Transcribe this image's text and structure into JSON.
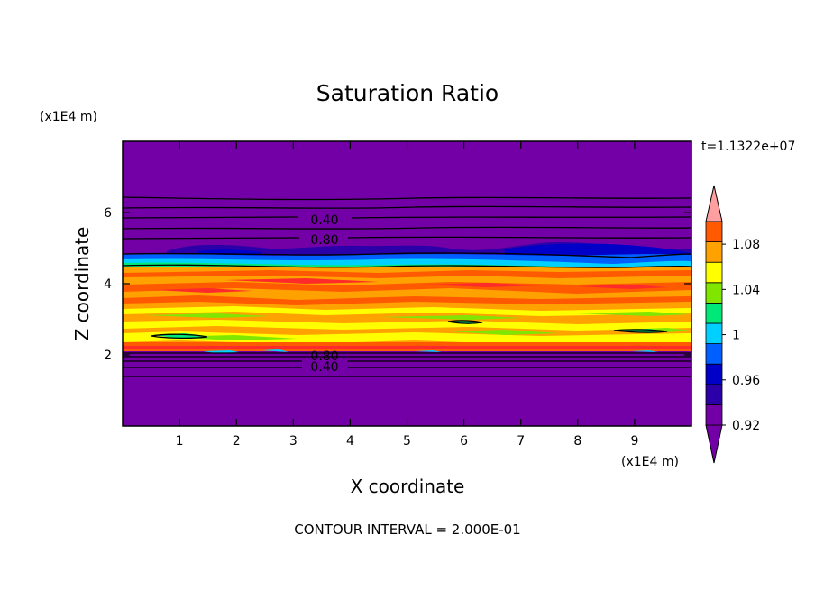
{
  "chart_data": {
    "type": "heatmap",
    "title": "Saturation Ratio",
    "xlabel": "X coordinate",
    "ylabel": "Z coordinate",
    "x_unit": "(x1E4 m)",
    "y_unit": "(x1E4 m)",
    "time_label": "t=1.1322e+07",
    "footer": "CONTOUR INTERVAL = 2.000E-01",
    "xlim": [
      0,
      10
    ],
    "ylim": [
      0,
      8
    ],
    "x_ticks": [
      "1",
      "2",
      "3",
      "4",
      "5",
      "6",
      "7",
      "8",
      "9"
    ],
    "y_ticks": [
      "2",
      "4",
      "6"
    ],
    "colorbar": {
      "levels": [
        0.92,
        0.94,
        0.96,
        0.98,
        1.0,
        1.02,
        1.04,
        1.06,
        1.08,
        1.1
      ],
      "tick_labels": [
        "0.92",
        "0.96",
        "1",
        "1.04",
        "1.08"
      ],
      "colors": [
        "#7300a6",
        "#2c00a8",
        "#0000c8",
        "#0060ff",
        "#00d0ff",
        "#00e878",
        "#80e600",
        "#ffff00",
        "#ffa200",
        "#ff5a00",
        "#ff2a2a",
        "#ff9f9f"
      ]
    },
    "contour_labels": [
      "0.40",
      "0.80",
      "0.80",
      "0.40"
    ],
    "bands": [
      {
        "y0": 0.0,
        "y1": 2.05,
        "value": "<0.92"
      },
      {
        "y0": 2.05,
        "y1": 2.3,
        "value": "1.06"
      },
      {
        "y0": 2.3,
        "y1": 3.0,
        "value": "1.04"
      },
      {
        "y0": 3.0,
        "y1": 4.5,
        "value": "1.06"
      },
      {
        "y0": 4.5,
        "y1": 4.85,
        "value": "0.98"
      },
      {
        "y0": 4.85,
        "y1": 8.0,
        "value": "<0.92"
      }
    ]
  }
}
